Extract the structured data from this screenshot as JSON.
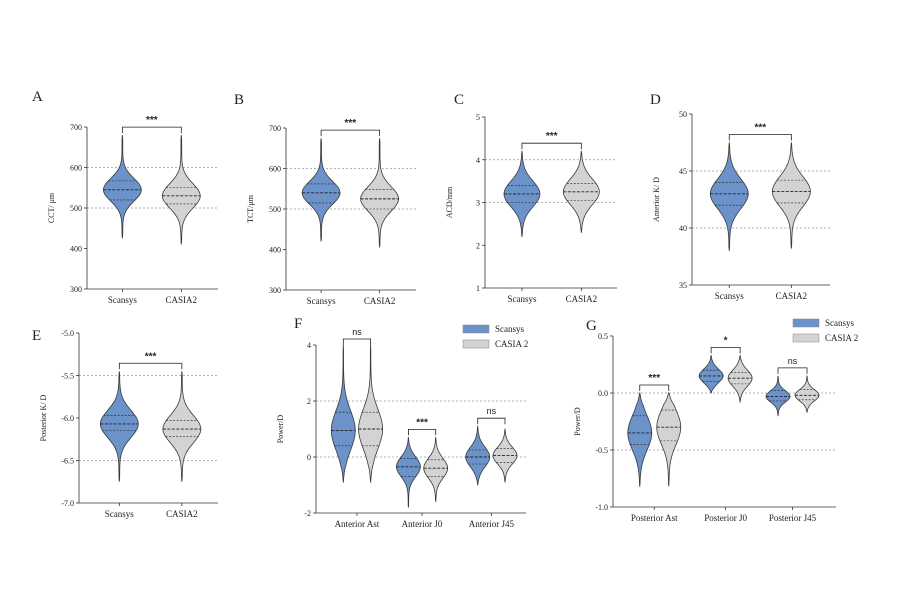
{
  "colors": {
    "scansys": "#6b92c9",
    "casia": "#d3d3d3",
    "outline": "#3a3a3a",
    "grid": "#9a9a9a"
  },
  "chart_data": [
    {
      "id": "A",
      "panel": "A",
      "type": "violin",
      "ylabel": "CCT/ μm",
      "ylim": [
        300,
        700
      ],
      "yticks": [
        300,
        400,
        500,
        600,
        700
      ],
      "gridlines": [
        500,
        600
      ],
      "categories": [
        "Scansys",
        "CASIA2"
      ],
      "series": [
        {
          "group": 0,
          "color": "scansys",
          "min": 425,
          "max": 680,
          "q1": 520,
          "median": 545,
          "q3": 567,
          "sd": 28
        },
        {
          "group": 0,
          "color": "casia",
          "min": 410,
          "max": 680,
          "q1": 510,
          "median": 530,
          "q3": 550,
          "sd": 30
        }
      ],
      "significance": [
        {
          "from": 0,
          "to": 1,
          "text": "***"
        }
      ]
    },
    {
      "id": "B",
      "panel": "B",
      "type": "violin",
      "ylabel": "TCT/μm",
      "ylim": [
        300,
        700
      ],
      "yticks": [
        300,
        400,
        500,
        600,
        700
      ],
      "gridlines": [
        500,
        600
      ],
      "categories": [
        "Scansys",
        "CASIA2"
      ],
      "series": [
        {
          "group": 0,
          "color": "scansys",
          "min": 420,
          "max": 675,
          "q1": 515,
          "median": 540,
          "q3": 562,
          "sd": 28
        },
        {
          "group": 0,
          "color": "casia",
          "min": 405,
          "max": 675,
          "q1": 500,
          "median": 525,
          "q3": 548,
          "sd": 30
        }
      ],
      "significance": [
        {
          "from": 0,
          "to": 1,
          "text": "***"
        }
      ]
    },
    {
      "id": "C",
      "panel": "C",
      "type": "violin",
      "ylabel": "ACD/mm",
      "ylim": [
        1,
        5
      ],
      "yticks": [
        1,
        2,
        3,
        4,
        5
      ],
      "gridlines": [
        3,
        4
      ],
      "categories": [
        "Scansys",
        "CASIA2"
      ],
      "series": [
        {
          "group": 0,
          "color": "scansys",
          "min": 2.2,
          "max": 4.2,
          "q1": 3.0,
          "median": 3.2,
          "q3": 3.4,
          "sd": 0.3
        },
        {
          "group": 0,
          "color": "casia",
          "min": 2.3,
          "max": 4.2,
          "q1": 3.05,
          "median": 3.25,
          "q3": 3.45,
          "sd": 0.3
        }
      ],
      "significance": [
        {
          "from": 0,
          "to": 1,
          "text": "***"
        }
      ]
    },
    {
      "id": "D",
      "panel": "D",
      "type": "violin",
      "ylabel": "Anterior K/ D",
      "ylim": [
        35,
        50
      ],
      "yticks": [
        35,
        40,
        45,
        50
      ],
      "gridlines": [
        40,
        45
      ],
      "categories": [
        "Scansys",
        "CASIA2"
      ],
      "series": [
        {
          "group": 0,
          "color": "scansys",
          "min": 38,
          "max": 47.5,
          "q1": 42.0,
          "median": 43.0,
          "q3": 44.0,
          "sd": 1.3
        },
        {
          "group": 0,
          "color": "casia",
          "min": 38.2,
          "max": 47.5,
          "q1": 42.2,
          "median": 43.2,
          "q3": 44.2,
          "sd": 1.3
        }
      ],
      "significance": [
        {
          "from": 0,
          "to": 1,
          "text": "***"
        }
      ]
    },
    {
      "id": "E",
      "panel": "E",
      "type": "violin",
      "ylabel": "Posterior K/ D",
      "ylim": [
        -7.0,
        -5.0
      ],
      "yticks": [
        -7.0,
        -6.5,
        -6.0,
        -5.5,
        -5.0
      ],
      "gridlines": [
        -6.5,
        -5.5
      ],
      "categories": [
        "Scansys",
        "CASIA2"
      ],
      "series": [
        {
          "group": 0,
          "color": "scansys",
          "min": -6.75,
          "max": -5.45,
          "q1": -6.15,
          "median": -6.07,
          "q3": -5.97,
          "sd": 0.16
        },
        {
          "group": 0,
          "color": "casia",
          "min": -6.75,
          "max": -5.45,
          "q1": -6.22,
          "median": -6.13,
          "q3": -6.03,
          "sd": 0.16
        }
      ],
      "significance": [
        {
          "from": 0,
          "to": 1,
          "text": "***"
        }
      ]
    },
    {
      "id": "F",
      "panel": "F",
      "type": "violin",
      "ylabel": "Power/D",
      "ylim": [
        -2,
        4
      ],
      "yticks": [
        -2,
        0,
        2,
        4
      ],
      "gridlines": [
        0,
        2
      ],
      "categories": [
        "Anterior Ast",
        "Anterior J0",
        "Anterior J45"
      ],
      "legend": [
        "Scansys",
        "CASIA 2"
      ],
      "series": [
        {
          "group": 0,
          "color": "scansys",
          "min": -0.9,
          "max": 4.0,
          "q1": 0.4,
          "median": 0.95,
          "q3": 1.6,
          "sd": 0.7
        },
        {
          "group": 0,
          "color": "casia",
          "min": -0.9,
          "max": 4.0,
          "q1": 0.4,
          "median": 1.0,
          "q3": 1.6,
          "sd": 0.7
        },
        {
          "group": 1,
          "color": "scansys",
          "min": -1.8,
          "max": 0.7,
          "q1": -0.7,
          "median": -0.35,
          "q3": -0.05,
          "sd": 0.35
        },
        {
          "group": 1,
          "color": "casia",
          "min": -1.6,
          "max": 0.7,
          "q1": -0.7,
          "median": -0.4,
          "q3": -0.1,
          "sd": 0.35
        },
        {
          "group": 2,
          "color": "scansys",
          "min": -1.0,
          "max": 1.1,
          "q1": -0.25,
          "median": 0.0,
          "q3": 0.25,
          "sd": 0.35
        },
        {
          "group": 2,
          "color": "casia",
          "min": -0.9,
          "max": 1.0,
          "q1": -0.2,
          "median": 0.05,
          "q3": 0.3,
          "sd": 0.3
        }
      ],
      "significance": [
        {
          "from": 0,
          "to": 1,
          "text": "ns"
        },
        {
          "from": 2,
          "to": 3,
          "text": "***"
        },
        {
          "from": 4,
          "to": 5,
          "text": "ns"
        }
      ]
    },
    {
      "id": "G",
      "panel": "G",
      "type": "violin",
      "ylabel": "Power/D",
      "ylim": [
        -1.0,
        0.5
      ],
      "yticks": [
        -1.0,
        -0.5,
        0.0,
        0.5
      ],
      "gridlines": [
        -0.5,
        0.0
      ],
      "categories": [
        "Posterior Ast",
        "Posterior J0",
        "Posterior J45"
      ],
      "legend": [
        "Scansys",
        "CASIA 2"
      ],
      "series": [
        {
          "group": 0,
          "color": "scansys",
          "min": -0.82,
          "max": 0.0,
          "q1": -0.45,
          "median": -0.35,
          "q3": -0.2,
          "sd": 0.15
        },
        {
          "group": 0,
          "color": "casia",
          "min": -0.82,
          "max": 0.0,
          "q1": -0.42,
          "median": -0.3,
          "q3": -0.15,
          "sd": 0.15
        },
        {
          "group": 1,
          "color": "scansys",
          "min": 0.0,
          "max": 0.33,
          "q1": 0.1,
          "median": 0.15,
          "q3": 0.2,
          "sd": 0.06
        },
        {
          "group": 1,
          "color": "casia",
          "min": -0.08,
          "max": 0.33,
          "q1": 0.08,
          "median": 0.13,
          "q3": 0.18,
          "sd": 0.07
        },
        {
          "group": 2,
          "color": "scansys",
          "min": -0.2,
          "max": 0.15,
          "q1": -0.07,
          "median": -0.03,
          "q3": 0.02,
          "sd": 0.05
        },
        {
          "group": 2,
          "color": "casia",
          "min": -0.17,
          "max": 0.15,
          "q1": -0.06,
          "median": -0.02,
          "q3": 0.03,
          "sd": 0.05
        }
      ],
      "significance": [
        {
          "from": 0,
          "to": 1,
          "text": "***"
        },
        {
          "from": 2,
          "to": 3,
          "text": "*"
        },
        {
          "from": 4,
          "to": 5,
          "text": "ns"
        }
      ]
    }
  ]
}
